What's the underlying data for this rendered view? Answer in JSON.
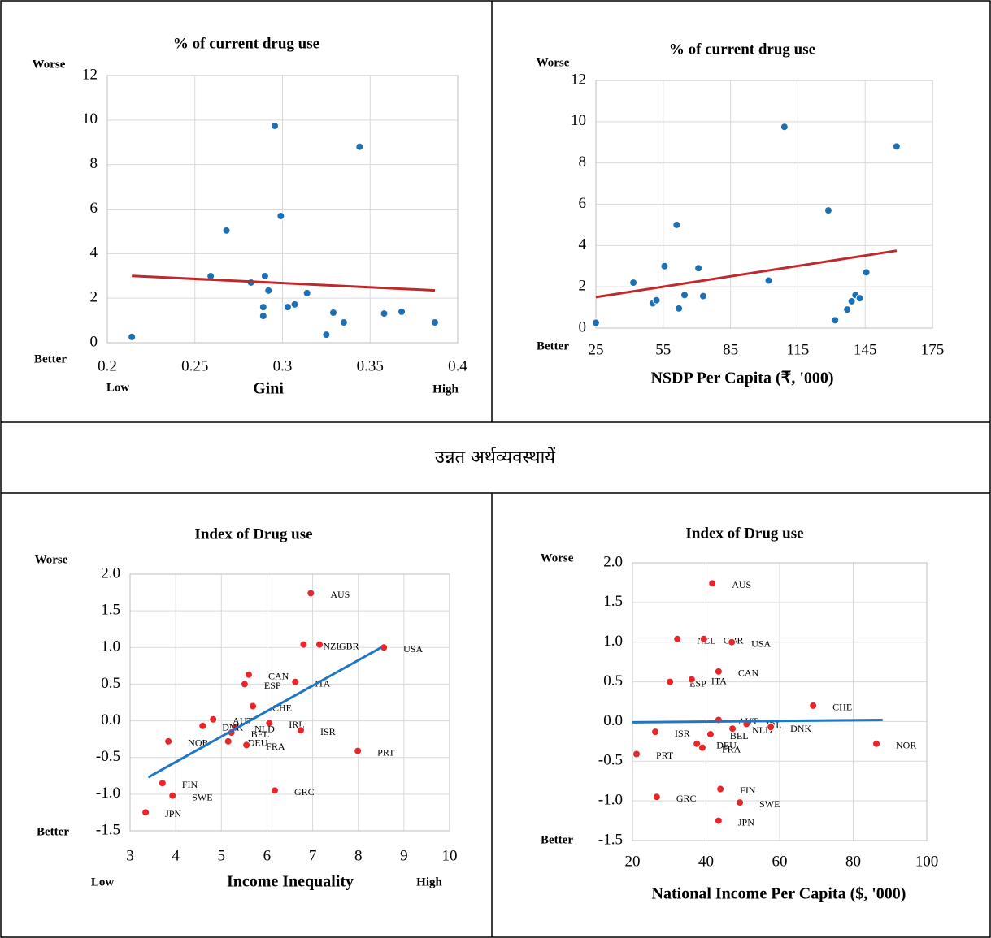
{
  "chart_data": [
    {
      "type": "scatter",
      "title": "% of current drug use",
      "x_label": "Gini",
      "y_top_label": "Worse",
      "y_bottom_label": "Better",
      "x_low_label": "Low",
      "x_high_label": "High",
      "x": [
        0.214,
        0.268,
        0.259,
        0.282,
        0.2956,
        0.299,
        0.29,
        0.289,
        0.289,
        0.292,
        0.303,
        0.307,
        0.314,
        0.329,
        0.325,
        0.335,
        0.344,
        0.358,
        0.368,
        0.387
      ],
      "series": [
        {
          "color": "#1f6fb5",
          "values": [
            0.26,
            5.04,
            2.99,
            2.7,
            9.74,
            5.69,
            2.99,
            1.6,
            1.2,
            2.34,
            1.6,
            1.72,
            2.23,
            1.35,
            0.36,
            0.91,
            8.8,
            1.31,
            1.39,
            0.91
          ]
        }
      ],
      "trendline": {
        "color": "#c0282b",
        "x": [
          0.214,
          0.387
        ],
        "y": [
          3.0,
          2.35
        ]
      },
      "xlim": [
        0.2,
        0.4
      ],
      "xticks": [
        0.2,
        0.25,
        0.3,
        0.35,
        0.4
      ],
      "ylim": [
        0,
        12
      ],
      "yticks": [
        0,
        2,
        4,
        6,
        8,
        10,
        12
      ],
      "grid": true
    },
    {
      "type": "scatter",
      "title": "% of current drug use",
      "x_label": "NSDP Per Capita (₹, '000)",
      "y_top_label": "Worse",
      "y_bottom_label": "Better",
      "x": [
        25,
        41.7,
        50.4,
        52,
        55.6,
        61,
        62,
        64.5,
        70.7,
        72.8,
        102,
        109,
        128.6,
        131.6,
        137,
        139,
        140.7,
        142.6,
        145.5,
        159
      ],
      "series": [
        {
          "color": "#1f6fb5",
          "values": [
            0.26,
            2.2,
            1.2,
            1.35,
            3.0,
            5.0,
            0.95,
            1.6,
            2.9,
            1.55,
            2.3,
            9.75,
            5.7,
            0.38,
            0.9,
            1.3,
            1.6,
            1.45,
            2.7,
            8.8
          ]
        }
      ],
      "trendline": {
        "color": "#c0282b",
        "x": [
          25,
          159
        ],
        "y": [
          1.5,
          3.75
        ]
      },
      "xlim": [
        25,
        175
      ],
      "xticks": [
        25,
        55,
        85,
        115,
        145,
        175
      ],
      "ylim": [
        0,
        12
      ],
      "yticks": [
        0,
        2,
        4,
        6,
        8,
        10,
        12
      ],
      "grid": true
    },
    {
      "type": "scatter",
      "title": "Index of Drug use",
      "x_label": "Income Inequality",
      "y_top_label": "Worse",
      "y_bottom_label": "Better",
      "x_low_label": "Low",
      "x_high_label": "High",
      "labels": [
        "AUS",
        "NZL",
        "GBR",
        "USA",
        "CAN",
        "ESP",
        "ITA",
        "CHE",
        "AUT",
        "IRL",
        "NLD",
        "DNK",
        "BEL",
        "ISR",
        "DEU",
        "FRA",
        "NOR",
        "PRT",
        "FIN",
        "SWE",
        "GRC",
        "JPN"
      ],
      "x": [
        6.96,
        6.8,
        7.15,
        8.56,
        5.6,
        5.51,
        6.62,
        5.69,
        4.82,
        6.05,
        5.3,
        4.59,
        5.22,
        6.74,
        5.15,
        5.55,
        3.84,
        7.99,
        3.71,
        3.93,
        6.17,
        3.34
      ],
      "series": [
        {
          "color": "#e8262a",
          "values": [
            1.74,
            1.04,
            1.04,
            1.0,
            0.63,
            0.5,
            0.53,
            0.2,
            0.02,
            -0.03,
            -0.09,
            -0.07,
            -0.16,
            -0.13,
            -0.28,
            -0.33,
            -0.28,
            -0.41,
            -0.85,
            -1.02,
            -0.95,
            -1.25
          ]
        }
      ],
      "trendline": {
        "color": "#1f77c4",
        "x": [
          3.4,
          8.5
        ],
        "y": [
          -0.77,
          1.0
        ]
      },
      "xlim": [
        3,
        10
      ],
      "xticks": [
        3,
        4,
        5,
        6,
        7,
        8,
        9,
        10
      ],
      "ylim": [
        -1.5,
        2
      ],
      "yticks": [
        -1.5,
        {
          "value": -1,
          "label": "-1.0"
        },
        -0.5,
        {
          "value": 0,
          "label": "0.0"
        },
        0.5,
        {
          "value": 1,
          "label": "1.0"
        },
        1.5,
        {
          "value": 2,
          "label": "2.0"
        }
      ],
      "grid": true
    },
    {
      "type": "scatter",
      "title": "Index of Drug use",
      "x_label": "National Income Per Capita ($, '000)",
      "y_top_label": "Worse",
      "y_bottom_label": "Better",
      "labels": [
        "AUS",
        "NZL",
        "GBR",
        "USA",
        "CAN",
        "ESP",
        "ITA",
        "CHE",
        "AUT",
        "IRL",
        "NLD",
        "DNK",
        "BEL",
        "ISR",
        "DEU",
        "FRA",
        "NOR",
        "PRT",
        "FIN",
        "SWE",
        "GRC",
        "JPN"
      ],
      "x": [
        41.7,
        32.2,
        39.4,
        47,
        43.4,
        30.2,
        36.1,
        69.1,
        43.4,
        51,
        47.2,
        57.6,
        41.2,
        26.2,
        37.5,
        39,
        86.3,
        21.1,
        43.9,
        49.2,
        26.6,
        43.4
      ],
      "series": [
        {
          "color": "#e8262a",
          "values": [
            1.74,
            1.04,
            1.04,
            1.0,
            0.63,
            0.5,
            0.53,
            0.2,
            0.02,
            -0.03,
            -0.09,
            -0.07,
            -0.16,
            -0.13,
            -0.28,
            -0.33,
            -0.28,
            -0.41,
            -0.85,
            -1.02,
            -0.95,
            -1.25
          ]
        }
      ],
      "trendline": {
        "color": "#1f77c4",
        "x": [
          20,
          88
        ],
        "y": [
          -0.01,
          0.02
        ]
      },
      "xlim": [
        20,
        100
      ],
      "xticks": [
        20,
        40,
        60,
        80,
        100
      ],
      "ylim": [
        -1.5,
        2
      ],
      "yticks": [
        -1.5,
        {
          "value": -1,
          "label": "-1.0"
        },
        -0.5,
        {
          "value": 0,
          "label": "0.0"
        },
        0.5,
        {
          "value": 1,
          "label": "1.0"
        },
        1.5,
        {
          "value": 2,
          "label": "2.0"
        }
      ],
      "grid": true
    }
  ],
  "section_title": "उन्नत अर्थव्यवस्थायें"
}
